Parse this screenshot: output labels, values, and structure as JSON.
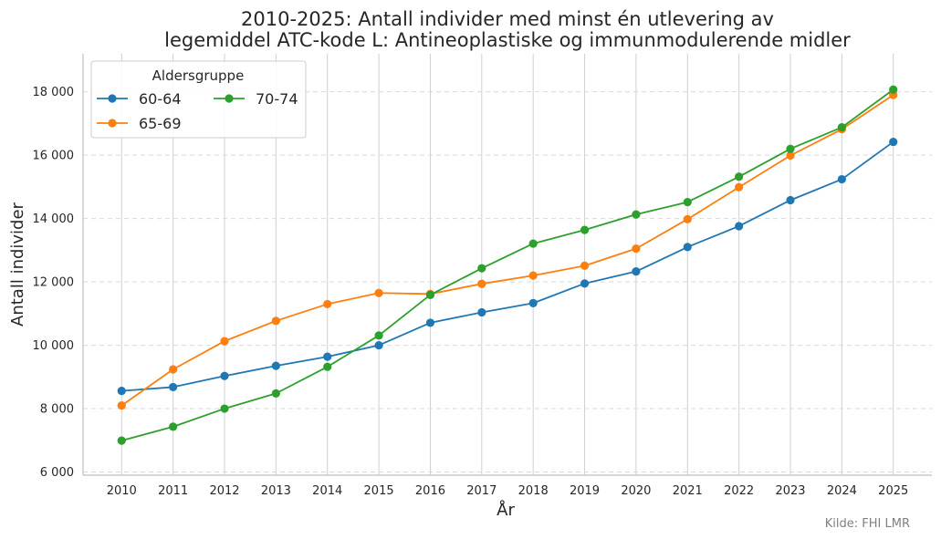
{
  "chart_data": {
    "type": "line",
    "title_line1": "2010-2025: Antall individer med minst én utlevering av",
    "title_line2": "legemiddel ATC-kode L: Antineoplastiske og immunmodulerende midler",
    "xlabel": "År",
    "ylabel": "Antall individer",
    "x": [
      2010,
      2011,
      2012,
      2013,
      2014,
      2015,
      2016,
      2017,
      2018,
      2019,
      2020,
      2021,
      2022,
      2023,
      2024,
      2025
    ],
    "x_tick_labels": [
      "2010",
      "2011",
      "2012",
      "2013",
      "2014",
      "2015",
      "2016",
      "2017",
      "2018",
      "2019",
      "2020",
      "2021",
      "2022",
      "2023",
      "2024",
      "2025"
    ],
    "y_ticks": [
      6000,
      8000,
      10000,
      12000,
      14000,
      16000,
      18000
    ],
    "y_tick_labels": [
      "6 000",
      "8 000",
      "10 000",
      "12 000",
      "14 000",
      "16 000",
      "18 000"
    ],
    "ylim": [
      5900,
      19200
    ],
    "grid": true,
    "legend": {
      "title": "Aldersgruppe",
      "placement": "top-left"
    },
    "series": [
      {
        "name": "60-64",
        "color": "#1f77b4",
        "values": [
          8560,
          8680,
          9030,
          9350,
          9640,
          10000,
          10710,
          11040,
          11330,
          11950,
          12330,
          13100,
          13760,
          14580,
          15240,
          16420
        ]
      },
      {
        "name": "65-69",
        "color": "#ff7f0e",
        "values": [
          8100,
          9240,
          10130,
          10770,
          11300,
          11650,
          11620,
          11940,
          12200,
          12510,
          13050,
          13980,
          14990,
          15990,
          16820,
          17900
        ]
      },
      {
        "name": "70-74",
        "color": "#2ca02c",
        "values": [
          6990,
          7430,
          8000,
          8480,
          9320,
          10310,
          11590,
          12430,
          13210,
          13640,
          14130,
          14520,
          15320,
          16200,
          16880,
          18070
        ]
      }
    ],
    "source": "Kilde: FHI LMR"
  }
}
